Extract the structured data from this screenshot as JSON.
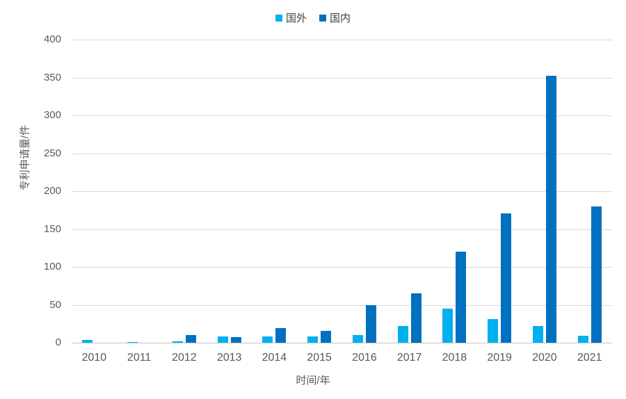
{
  "chart_data": {
    "type": "bar",
    "categories": [
      "2010",
      "2011",
      "2012",
      "2013",
      "2014",
      "2015",
      "2016",
      "2017",
      "2018",
      "2019",
      "2020",
      "2021"
    ],
    "series": [
      {
        "name": "国外",
        "color": "#00B0F0",
        "values": [
          4,
          1,
          2,
          8,
          8,
          8,
          10,
          22,
          45,
          31,
          22,
          9
        ]
      },
      {
        "name": "国内",
        "color": "#0070C0",
        "values": [
          0,
          0,
          10,
          7,
          19,
          16,
          50,
          65,
          120,
          171,
          352,
          180
        ]
      }
    ],
    "title": "",
    "xlabel": "时间/年",
    "ylabel": "专利申请量/件",
    "ylim": [
      0,
      400
    ],
    "yticks": [
      0,
      50,
      100,
      150,
      200,
      250,
      300,
      350,
      400
    ],
    "grid": true,
    "legend_position": "top-center",
    "colors": {
      "grid": "#d9d9d9",
      "axis_line": "#c3c3c3",
      "tick_text": "#595959",
      "legend_text": "#404040",
      "background": "#ffffff"
    }
  }
}
